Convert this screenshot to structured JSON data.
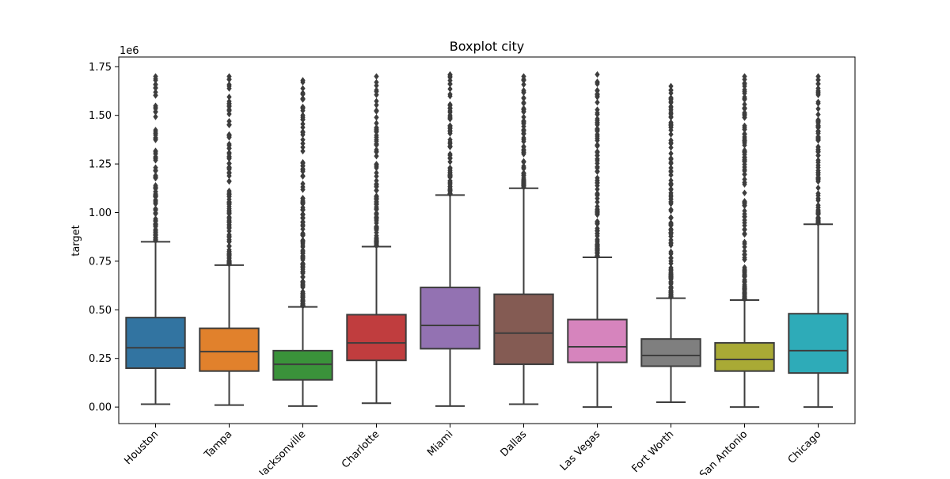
{
  "chart_data": {
    "type": "box",
    "title": "Boxplot city",
    "xlabel": "",
    "ylabel": "target",
    "y_offset_label": "1e6",
    "ylim": [
      -0.085,
      1.8
    ],
    "yticks": [
      0.0,
      0.25,
      0.5,
      0.75,
      1.0,
      1.25,
      1.5,
      1.75
    ],
    "ytick_labels": [
      "0.00",
      "0.25",
      "0.50",
      "0.75",
      "1.00",
      "1.25",
      "1.50",
      "1.75"
    ],
    "grid": false,
    "legend": "none",
    "categories": [
      "Houston",
      "Tampa",
      "Jacksonville",
      "Charlotte",
      "Miami",
      "Dallas",
      "Las Vegas",
      "Fort Worth",
      "San Antonio",
      "Chicago"
    ],
    "boxes": [
      {
        "category": "Houston",
        "whisker_low": 0.015,
        "q1": 0.2,
        "median": 0.305,
        "q3": 0.46,
        "whisker_high": 0.85,
        "outlier_max": 1.7,
        "color": "#3274a1"
      },
      {
        "category": "Tampa",
        "whisker_low": 0.01,
        "q1": 0.185,
        "median": 0.285,
        "q3": 0.405,
        "whisker_high": 0.73,
        "outlier_max": 1.7,
        "color": "#e1812c"
      },
      {
        "category": "Jacksonville",
        "whisker_low": 0.005,
        "q1": 0.14,
        "median": 0.22,
        "q3": 0.29,
        "whisker_high": 0.515,
        "outlier_max": 1.68,
        "color": "#3a923a"
      },
      {
        "category": "Charlotte",
        "whisker_low": 0.02,
        "q1": 0.24,
        "median": 0.33,
        "q3": 0.475,
        "whisker_high": 0.825,
        "outlier_max": 1.7,
        "color": "#c03d3e"
      },
      {
        "category": "Miami",
        "whisker_low": 0.005,
        "q1": 0.3,
        "median": 0.42,
        "q3": 0.615,
        "whisker_high": 1.09,
        "outlier_max": 1.71,
        "color": "#9372b2"
      },
      {
        "category": "Dallas",
        "whisker_low": 0.015,
        "q1": 0.22,
        "median": 0.38,
        "q3": 0.58,
        "whisker_high": 1.125,
        "outlier_max": 1.7,
        "color": "#845b53"
      },
      {
        "category": "Las Vegas",
        "whisker_low": 0.0,
        "q1": 0.23,
        "median": 0.31,
        "q3": 0.45,
        "whisker_high": 0.77,
        "outlier_max": 1.71,
        "color": "#d684bd"
      },
      {
        "category": "Fort Worth",
        "whisker_low": 0.025,
        "q1": 0.21,
        "median": 0.265,
        "q3": 0.35,
        "whisker_high": 0.56,
        "outlier_max": 1.65,
        "color": "#7f7f7f"
      },
      {
        "category": "San Antonio",
        "whisker_low": 0.0,
        "q1": 0.185,
        "median": 0.245,
        "q3": 0.33,
        "whisker_high": 0.55,
        "outlier_max": 1.7,
        "color": "#a9aa35"
      },
      {
        "category": "Chicago",
        "whisker_low": 0.0,
        "q1": 0.175,
        "median": 0.29,
        "q3": 0.48,
        "whisker_high": 0.94,
        "outlier_max": 1.7,
        "color": "#2eabb8"
      }
    ]
  }
}
